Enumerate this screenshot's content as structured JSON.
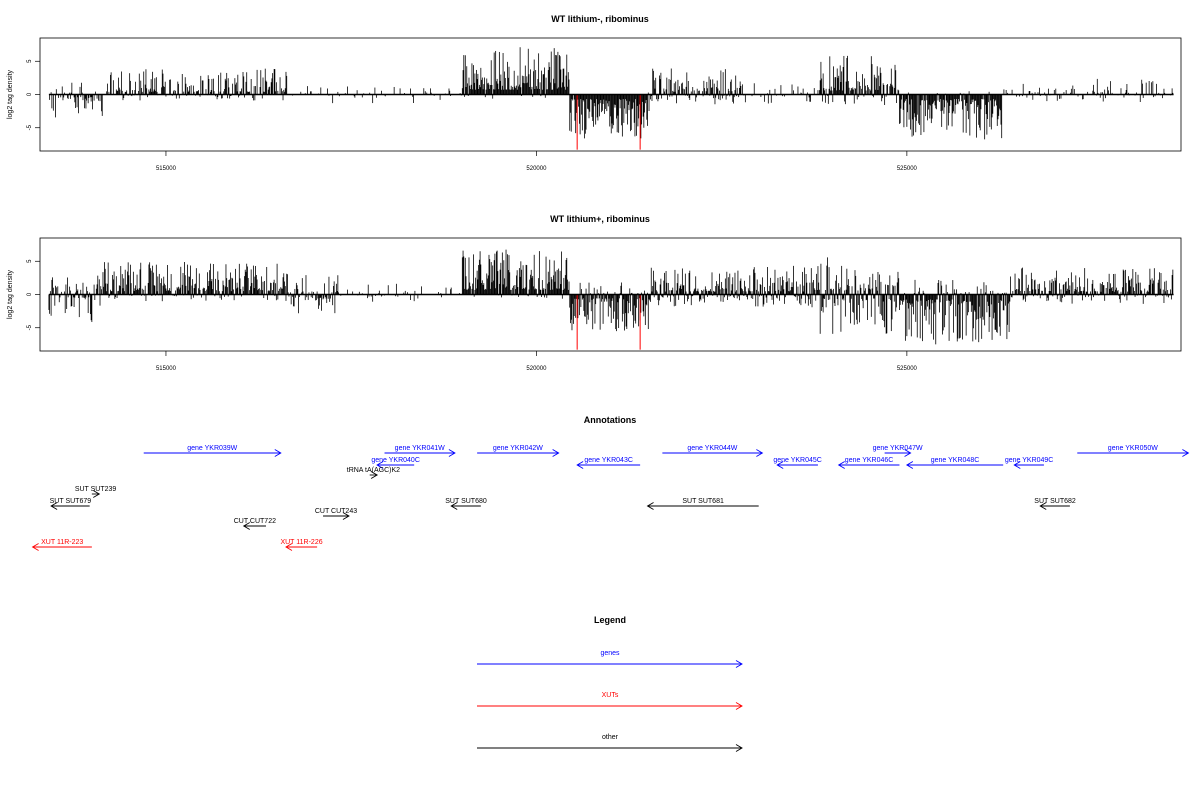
{
  "chart_data": [
    {
      "type": "bar",
      "title": "WT lithium-, ribominus",
      "ylabel": "log2 tag density",
      "xlabel": "",
      "xlim": [
        513300,
        528700
      ],
      "ylim": [
        -8.5,
        8.5
      ],
      "xticks": [
        515000,
        520000,
        525000
      ],
      "xtick_labels": [
        "515000",
        "520000",
        "525000"
      ],
      "yticks": [
        -5,
        0,
        5
      ],
      "ytick_labels": [
        "-5",
        "0",
        "5"
      ],
      "profile": [
        {
          "x0": 513420,
          "x1": 514150,
          "pos": 1.8,
          "neg": 2.6,
          "d": 0.65
        },
        {
          "x0": 514150,
          "x1": 516650,
          "pos": 2.6,
          "neg": 0.6,
          "d": 0.7
        },
        {
          "x0": 516650,
          "x1": 519000,
          "pos": 1.0,
          "neg": 0.9,
          "d": 0.2
        },
        {
          "x0": 519000,
          "x1": 520450,
          "pos": 4.8,
          "neg": 0.5,
          "d": 1.0
        },
        {
          "x0": 520450,
          "x1": 521550,
          "pos": 0.3,
          "neg": 4.6,
          "d": 1.0
        },
        {
          "x0": 521550,
          "x1": 522800,
          "pos": 2.7,
          "neg": 1.0,
          "d": 0.75
        },
        {
          "x0": 522800,
          "x1": 523800,
          "pos": 1.2,
          "neg": 1.0,
          "d": 0.25
        },
        {
          "x0": 523800,
          "x1": 524900,
          "pos": 4.0,
          "neg": 1.2,
          "d": 0.85
        },
        {
          "x0": 524900,
          "x1": 526300,
          "pos": 0.5,
          "neg": 4.5,
          "d": 0.95
        },
        {
          "x0": 526300,
          "x1": 528600,
          "pos": 1.6,
          "neg": 0.8,
          "d": 0.4
        }
      ],
      "red_spikes": [
        {
          "x": 520550,
          "y": -8.3
        },
        {
          "x": 521400,
          "y": -8.3
        }
      ]
    },
    {
      "type": "bar",
      "title": "WT lithium+, ribominus",
      "ylabel": "log2 tag density",
      "xlabel": "",
      "xlim": [
        513300,
        528700
      ],
      "ylim": [
        -8.5,
        8.5
      ],
      "xticks": [
        515000,
        520000,
        525000
      ],
      "xtick_labels": [
        "515000",
        "520000",
        "525000"
      ],
      "yticks": [
        -5,
        0,
        5
      ],
      "ytick_labels": [
        "-5",
        "0",
        "5"
      ],
      "profile": [
        {
          "x0": 513420,
          "x1": 514150,
          "pos": 2.0,
          "neg": 2.8,
          "d": 0.8
        },
        {
          "x0": 514150,
          "x1": 516650,
          "pos": 3.3,
          "neg": 0.7,
          "d": 0.9
        },
        {
          "x0": 516650,
          "x1": 517350,
          "pos": 2.0,
          "neg": 2.0,
          "d": 0.7
        },
        {
          "x0": 517350,
          "x1": 519000,
          "pos": 1.2,
          "neg": 0.8,
          "d": 0.25
        },
        {
          "x0": 519000,
          "x1": 520450,
          "pos": 4.6,
          "neg": 0.5,
          "d": 1.0
        },
        {
          "x0": 520450,
          "x1": 521550,
          "pos": 1.3,
          "neg": 3.8,
          "d": 1.0
        },
        {
          "x0": 521550,
          "x1": 523800,
          "pos": 2.9,
          "neg": 1.3,
          "d": 1.0
        },
        {
          "x0": 523800,
          "x1": 524900,
          "pos": 3.8,
          "neg": 4.0,
          "d": 1.0
        },
        {
          "x0": 524900,
          "x1": 526400,
          "pos": 1.5,
          "neg": 5.0,
          "d": 1.0
        },
        {
          "x0": 526400,
          "x1": 528600,
          "pos": 2.7,
          "neg": 1.0,
          "d": 0.9
        }
      ],
      "red_spikes": [
        {
          "x": 520550,
          "y": -8.3
        },
        {
          "x": 521400,
          "y": -8.3
        }
      ]
    }
  ],
  "annotations": {
    "title": "Annotations",
    "xlim": [
      513300,
      528700
    ],
    "features": [
      {
        "label": "gene YKR039W",
        "x0": 514700,
        "x1": 516550,
        "dir": "right",
        "row": 0,
        "color": "#0000ff"
      },
      {
        "label": "gene YKR041W",
        "x0": 517950,
        "x1": 518900,
        "dir": "right",
        "row": 0,
        "color": "#0000ff"
      },
      {
        "label": "gene YKR042W",
        "x0": 519200,
        "x1": 520300,
        "dir": "right",
        "row": 0,
        "color": "#0000ff"
      },
      {
        "label": "gene YKR044W",
        "x0": 521700,
        "x1": 523050,
        "dir": "right",
        "row": 0,
        "color": "#0000ff"
      },
      {
        "label": "gene YKR047W",
        "x0": 524700,
        "x1": 525050,
        "dir": "right",
        "row": 0,
        "color": "#0000ff"
      },
      {
        "label": "gene YKR050W",
        "x0": 527300,
        "x1": 528800,
        "dir": "right",
        "row": 0,
        "color": "#0000ff"
      },
      {
        "label": "gene YKR040C",
        "x0": 517850,
        "x1": 518350,
        "dir": "left",
        "row": 1,
        "color": "#0000ff"
      },
      {
        "label": "gene YKR043C",
        "x0": 520550,
        "x1": 521400,
        "dir": "left",
        "row": 1,
        "color": "#0000ff"
      },
      {
        "label": "gene YKR045C",
        "x0": 523250,
        "x1": 523800,
        "dir": "left",
        "row": 1,
        "color": "#0000ff"
      },
      {
        "label": "gene YKR046C",
        "x0": 524080,
        "x1": 524900,
        "dir": "left",
        "row": 1,
        "color": "#0000ff"
      },
      {
        "label": "gene YKR048C",
        "x0": 525000,
        "x1": 526300,
        "dir": "left",
        "row": 1,
        "color": "#0000ff"
      },
      {
        "label": "gene YKR049C",
        "x0": 526450,
        "x1": 526850,
        "dir": "left",
        "row": 1,
        "color": "#0000ff"
      },
      {
        "label": "tRNA tA(AGC)K2",
        "x0": 517750,
        "x1": 517850,
        "dir": "right",
        "row": 2,
        "color": "#000000"
      },
      {
        "label": "SUT SUT239",
        "x0": 514000,
        "x1": 514100,
        "dir": "right",
        "row": 3,
        "color": "#000000"
      },
      {
        "label": "SUT SUT679",
        "x0": 513450,
        "x1": 513970,
        "dir": "left",
        "row": 4,
        "color": "#000000"
      },
      {
        "label": "SUT SUT680",
        "x0": 518850,
        "x1": 519250,
        "dir": "left",
        "row": 4,
        "color": "#000000"
      },
      {
        "label": "SUT SUT681",
        "x0": 521500,
        "x1": 523000,
        "dir": "left",
        "row": 4,
        "color": "#000000"
      },
      {
        "label": "SUT SUT682",
        "x0": 526800,
        "x1": 527200,
        "dir": "left",
        "row": 4,
        "color": "#000000"
      },
      {
        "label": "CUT CUT243",
        "x0": 517120,
        "x1": 517470,
        "dir": "right",
        "row": 5,
        "color": "#000000"
      },
      {
        "label": "CUT CUT722",
        "x0": 516050,
        "x1": 516350,
        "dir": "left",
        "row": 6,
        "color": "#000000"
      },
      {
        "label": "XUT 11R-223",
        "x0": 513200,
        "x1": 514000,
        "dir": "left",
        "row": 7,
        "color": "#ff0000"
      },
      {
        "label": "XUT 11R-226",
        "x0": 516620,
        "x1": 517040,
        "dir": "left",
        "row": 7,
        "color": "#ff0000"
      }
    ]
  },
  "legend": {
    "title": "Legend",
    "items": [
      {
        "label": "genes",
        "color": "#0000ff"
      },
      {
        "label": "XUTs",
        "color": "#ff0000"
      },
      {
        "label": "other",
        "color": "#000000"
      }
    ]
  }
}
